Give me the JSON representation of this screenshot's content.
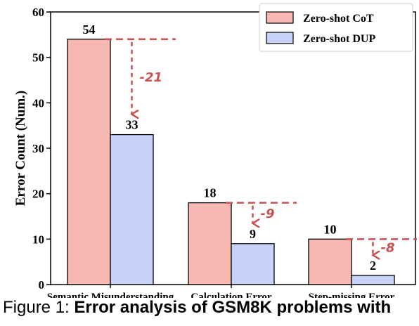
{
  "chart_data": {
    "type": "bar",
    "categories": [
      "Semantic Misunderstanding",
      "Calculation Error",
      "Step-missing Error"
    ],
    "series": [
      {
        "name": "Zero-shot CoT",
        "values": [
          54,
          18,
          10
        ],
        "color": "#f8b8b2"
      },
      {
        "name": "Zero-shot DUP",
        "values": [
          33,
          9,
          2
        ],
        "color": "#c6d2f8"
      }
    ],
    "differences": [
      "-21",
      "-9",
      "-8"
    ],
    "difference_color": "#c85050",
    "ylabel": "Error Count (Num.)",
    "xlabel": "",
    "ylim": [
      0,
      60
    ],
    "yticks": [
      0,
      10,
      20,
      30,
      40,
      50,
      60
    ],
    "grid": false,
    "legend_position": "top-right"
  },
  "caption": {
    "prefix": "Figure 1: ",
    "text": "Error analysis of GSM8K problems with"
  }
}
